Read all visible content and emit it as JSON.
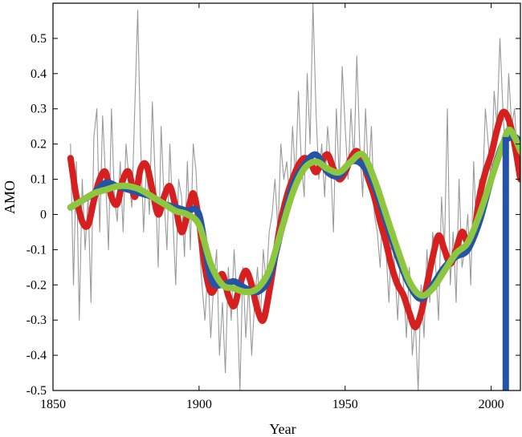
{
  "chart_data": {
    "type": "line",
    "title": "",
    "xlabel": "Year",
    "ylabel": "AMO",
    "xlim": [
      1850,
      2010
    ],
    "ylim": [
      -0.5,
      0.6
    ],
    "grid": false,
    "legend": "none",
    "x_ticks": [
      1850,
      1900,
      1950,
      2000
    ],
    "y_ticks": [
      -0.5,
      -0.4,
      -0.3,
      -0.2,
      -0.1,
      0,
      0.1,
      0.2,
      0.3,
      0.4,
      0.5
    ],
    "y_tick_labels": [
      "-0.5",
      "-0.4",
      "-0.3",
      "-0.2",
      "-0.1",
      "0",
      "0.1",
      "0.2",
      "0.3",
      "0.4",
      "0.5"
    ],
    "series": [
      {
        "color": "#999999",
        "style": "thin noisy monthly index",
        "x": [
          1856,
          1857,
          1858,
          1859,
          1860,
          1861,
          1862,
          1863,
          1864,
          1865,
          1866,
          1867,
          1868,
          1869,
          1870,
          1871,
          1872,
          1873,
          1874,
          1875,
          1876,
          1877,
          1878,
          1879,
          1880,
          1881,
          1882,
          1883,
          1884,
          1885,
          1886,
          1887,
          1888,
          1889,
          1890,
          1891,
          1892,
          1893,
          1894,
          1895,
          1896,
          1897,
          1898,
          1899,
          1900,
          1901,
          1902,
          1903,
          1904,
          1905,
          1906,
          1907,
          1908,
          1909,
          1910,
          1911,
          1912,
          1913,
          1914,
          1915,
          1916,
          1917,
          1918,
          1919,
          1920,
          1921,
          1922,
          1923,
          1924,
          1925,
          1926,
          1927,
          1928,
          1929,
          1930,
          1931,
          1932,
          1933,
          1934,
          1935,
          1936,
          1937,
          1938,
          1939,
          1940,
          1941,
          1942,
          1943,
          1944,
          1945,
          1946,
          1947,
          1948,
          1949,
          1950,
          1951,
          1952,
          1953,
          1954,
          1955,
          1956,
          1957,
          1958,
          1959,
          1960,
          1961,
          1962,
          1963,
          1964,
          1965,
          1966,
          1967,
          1968,
          1969,
          1970,
          1971,
          1972,
          1973,
          1974,
          1975,
          1976,
          1977,
          1978,
          1979,
          1980,
          1981,
          1982,
          1983,
          1984,
          1985,
          1986,
          1987,
          1988,
          1989,
          1990,
          1991,
          1992,
          1993,
          1994,
          1995,
          1996,
          1997,
          1998,
          1999,
          2000,
          2001,
          2002,
          2003,
          2004,
          2005,
          2006,
          2007,
          2008,
          2009,
          2010
        ],
        "y": [
          0.2,
          -0.2,
          0.15,
          -0.3,
          0.1,
          -0.1,
          0.05,
          -0.25,
          0.22,
          0.3,
          -0.05,
          0.28,
          0.1,
          -0.1,
          0.3,
          0.05,
          -0.02,
          0.15,
          -0.05,
          0.2,
          0.1,
          0.02,
          0.3,
          0.58,
          0.2,
          -0.05,
          0.15,
          0.0,
          0.32,
          0.1,
          -0.15,
          0.25,
          0.05,
          -0.1,
          0.2,
          0.0,
          -0.2,
          0.1,
          0.05,
          -0.12,
          0.15,
          -0.1,
          0.2,
          0.12,
          -0.08,
          -0.2,
          -0.3,
          -0.15,
          -0.35,
          -0.2,
          -0.1,
          -0.4,
          -0.25,
          -0.45,
          -0.15,
          -0.3,
          -0.1,
          -0.25,
          -0.5,
          -0.15,
          -0.35,
          -0.2,
          -0.4,
          -0.25,
          -0.15,
          -0.3,
          -0.1,
          -0.2,
          -0.05,
          0.0,
          0.1,
          -0.05,
          0.2,
          0.1,
          0.15,
          0.05,
          0.25,
          0.1,
          0.35,
          0.15,
          0.05,
          0.4,
          0.2,
          0.6,
          0.3,
          0.1,
          0.2,
          0.05,
          0.25,
          0.15,
          -0.05,
          0.3,
          0.1,
          0.42,
          0.25,
          0.1,
          0.3,
          0.15,
          0.45,
          0.2,
          0.05,
          0.3,
          0.1,
          0.25,
          0.0,
          -0.05,
          -0.15,
          0.05,
          -0.1,
          -0.25,
          -0.05,
          -0.15,
          -0.3,
          -0.1,
          -0.2,
          -0.35,
          -0.15,
          -0.4,
          -0.3,
          -0.5,
          -0.2,
          -0.35,
          -0.1,
          -0.25,
          -0.05,
          -0.15,
          -0.3,
          0.05,
          -0.1,
          0.3,
          -0.2,
          -0.05,
          -0.25,
          0.1,
          -0.15,
          -0.1,
          0.0,
          -0.2,
          0.15,
          -0.05,
          0.1,
          0.05,
          0.3,
          0.2,
          0.1,
          0.35,
          0.25,
          0.5,
          0.3,
          0.15,
          0.4,
          0.25,
          0.3,
          0.15,
          0.2
        ]
      },
      {
        "color": "#d62020",
        "style": "thick smoothed",
        "x": [
          1856,
          1858,
          1860,
          1862,
          1864,
          1866,
          1868,
          1870,
          1872,
          1874,
          1876,
          1878,
          1880,
          1882,
          1884,
          1886,
          1888,
          1890,
          1892,
          1894,
          1896,
          1898,
          1900,
          1902,
          1904,
          1906,
          1908,
          1910,
          1912,
          1914,
          1916,
          1918,
          1920,
          1922,
          1924,
          1926,
          1928,
          1930,
          1932,
          1934,
          1936,
          1938,
          1940,
          1942,
          1944,
          1946,
          1948,
          1950,
          1952,
          1954,
          1956,
          1958,
          1960,
          1962,
          1964,
          1966,
          1968,
          1970,
          1972,
          1974,
          1976,
          1978,
          1980,
          1982,
          1984,
          1986,
          1988,
          1990,
          1992,
          1994,
          1996,
          1998,
          2000,
          2002,
          2004,
          2006,
          2008,
          2010
        ],
        "y": [
          0.16,
          0.05,
          -0.02,
          -0.03,
          0.04,
          0.1,
          0.12,
          0.05,
          0.03,
          0.1,
          0.12,
          0.05,
          0.13,
          0.14,
          0.07,
          0.0,
          0.05,
          0.08,
          0.02,
          -0.05,
          0.0,
          0.06,
          -0.02,
          -0.15,
          -0.22,
          -0.2,
          -0.17,
          -0.23,
          -0.26,
          -0.2,
          -0.16,
          -0.2,
          -0.27,
          -0.3,
          -0.22,
          -0.12,
          -0.02,
          0.05,
          0.1,
          0.14,
          0.16,
          0.15,
          0.12,
          0.15,
          0.17,
          0.13,
          0.1,
          0.12,
          0.16,
          0.18,
          0.15,
          0.1,
          0.05,
          -0.02,
          -0.08,
          -0.15,
          -0.2,
          -0.23,
          -0.28,
          -0.32,
          -0.28,
          -0.2,
          -0.12,
          -0.06,
          -0.1,
          -0.14,
          -0.1,
          -0.05,
          -0.08,
          -0.06,
          0.05,
          0.12,
          0.17,
          0.24,
          0.29,
          0.27,
          0.2,
          0.1
        ]
      },
      {
        "color": "#2553a8",
        "style": "thick smoothed",
        "x": [
          1856,
          1860,
          1864,
          1868,
          1872,
          1876,
          1880,
          1884,
          1888,
          1892,
          1896,
          1900,
          1904,
          1908,
          1912,
          1916,
          1920,
          1924,
          1928,
          1932,
          1936,
          1940,
          1944,
          1948,
          1952,
          1956,
          1960,
          1964,
          1968,
          1972,
          1976,
          1980,
          1984,
          1988,
          1992,
          1996,
          2000,
          2004,
          2008,
          2010
        ],
        "y": [
          0.02,
          0.04,
          0.06,
          0.09,
          0.08,
          0.07,
          0.06,
          0.05,
          0.03,
          0.02,
          0.01,
          0.0,
          -0.18,
          -0.2,
          -0.19,
          -0.21,
          -0.22,
          -0.18,
          -0.05,
          0.08,
          0.14,
          0.17,
          0.12,
          0.11,
          0.15,
          0.14,
          0.08,
          -0.02,
          -0.12,
          -0.2,
          -0.24,
          -0.2,
          -0.15,
          -0.12,
          -0.1,
          -0.02,
          0.1,
          0.2,
          0.22,
          0.2
        ]
      },
      {
        "color": "#8dc63f",
        "style": "thick smoothed",
        "x": [
          1856,
          1860,
          1864,
          1868,
          1872,
          1876,
          1880,
          1884,
          1888,
          1892,
          1896,
          1900,
          1904,
          1908,
          1912,
          1916,
          1920,
          1924,
          1928,
          1932,
          1936,
          1940,
          1944,
          1948,
          1952,
          1956,
          1960,
          1964,
          1968,
          1972,
          1976,
          1980,
          1984,
          1988,
          1992,
          1996,
          2000,
          2004,
          2006,
          2008,
          2010
        ],
        "y": [
          0.02,
          0.04,
          0.06,
          0.07,
          0.08,
          0.08,
          0.07,
          0.05,
          0.03,
          0.01,
          0.0,
          -0.03,
          -0.14,
          -0.2,
          -0.21,
          -0.22,
          -0.21,
          -0.16,
          -0.05,
          0.06,
          0.13,
          0.15,
          0.13,
          0.12,
          0.15,
          0.17,
          0.1,
          0.0,
          -0.1,
          -0.19,
          -0.23,
          -0.21,
          -0.16,
          -0.11,
          -0.08,
          0.0,
          0.1,
          0.2,
          0.24,
          0.22,
          0.18
        ]
      }
    ],
    "vertical_bar": {
      "color": "#2553a8",
      "x": 2005,
      "from": -0.5,
      "to": 0.22
    }
  }
}
